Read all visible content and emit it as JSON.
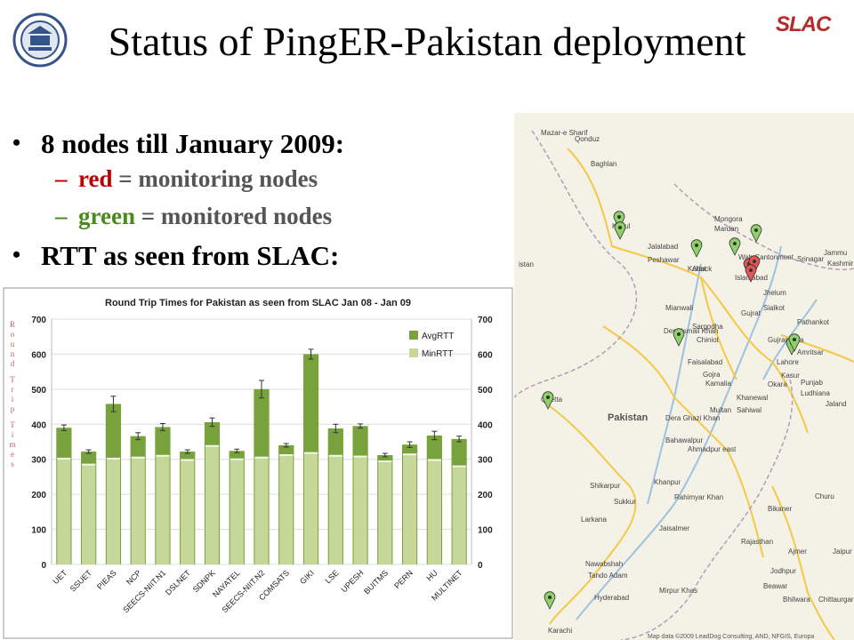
{
  "title": "Status of PingER-Pakistan deployment",
  "logo_text": "SLAC",
  "bullets": [
    {
      "text": "8 nodes till January 2009:"
    },
    {
      "text": "RTT as seen from SLAC:"
    }
  ],
  "sub_bullets": [
    {
      "dash": "–",
      "color_word": "red",
      "color": "#c00000",
      "rest": " = monitoring nodes"
    },
    {
      "dash": "–",
      "color_word": "green",
      "color": "#4a8a1c",
      "rest": " = monitored nodes"
    }
  ],
  "chart_data": {
    "type": "bar",
    "title": "Round Trip Times for Pakistan as seen from SLAC Jan 08 - Jan 09",
    "ylabel": "Round Trip Times",
    "ylim": [
      0,
      700
    ],
    "yticks": [
      0,
      100,
      200,
      300,
      400,
      500,
      600,
      700
    ],
    "legend_position": "top-right",
    "grid": true,
    "categories": [
      "UET",
      "SSUET",
      "PIEAS",
      "NCP",
      "SEECS-NIIT.N1",
      "DSLNET",
      "SDNPK",
      "NAYATEL",
      "SEECS-NIIT.N2",
      "COMSATS",
      "GIKI",
      "LSE",
      "UPESH",
      "BUITMS",
      "PERN",
      "HU",
      "MULTINET"
    ],
    "series": [
      {
        "name": "AvgRTT",
        "color": "#77a23c",
        "values": [
          390,
          322,
          458,
          366,
          392,
          322,
          406,
          324,
          500,
          340,
          600,
          388,
          395,
          312,
          342,
          368,
          358
        ],
        "errors": [
          8,
          5,
          22,
          10,
          10,
          5,
          12,
          5,
          25,
          5,
          14,
          12,
          6,
          5,
          8,
          12,
          8
        ]
      },
      {
        "name": "MinRTT",
        "color": "#c5d89a",
        "values": [
          302,
          285,
          302,
          305,
          310,
          298,
          338,
          300,
          305,
          312,
          318,
          310,
          308,
          294,
          314,
          298,
          280
        ]
      }
    ]
  },
  "map": {
    "country_label": "Pakistan",
    "places": [
      "Mazar-e Sharif",
      "Qonduz",
      "Baghlan",
      "Kabul",
      "Jalalabad",
      "Peshawar",
      "Kohat",
      "Mardan",
      "Attock",
      "Wah Cantonment",
      "Islamabad",
      "Mongora",
      "Srinagar",
      "Jammu",
      "Kashmir",
      "Jhelum",
      "Mianwali",
      "Gujrat",
      "Sialkot",
      "Pathankot",
      "Sargodha",
      "Chiniot",
      "Gujranwala",
      "Amritsar",
      "Faisalabad",
      "Lahore",
      "Kasur",
      "Gojra",
      "Kamalia",
      "Okara",
      "Ludhiana",
      "Dera Ismail Khan",
      "Quetta",
      "Khanewal",
      "Sahiwal",
      "Punjab",
      "Jaland",
      "Multan",
      "Dera Ghazi Khan",
      "Bahawalpur",
      "Ahmadpur east",
      "Khanpur",
      "Rahimyar Khan",
      "Shikarpur",
      "Sukkur",
      "Larkana",
      "Bikaner",
      "Churu",
      "Nawabshah",
      "Tando Adam",
      "Hyderabad",
      "Mirpur Khas",
      "Karachi",
      "Jaisalmer",
      "Jodhpur",
      "Rajasthan",
      "Ajmer",
      "Jaipur",
      "Beawar",
      "Bhilwara",
      "Chittaurgarh",
      "istan"
    ],
    "attribution": "Map data ©2009 LeadDog Consulting, AND, NFGIS, Europa"
  }
}
